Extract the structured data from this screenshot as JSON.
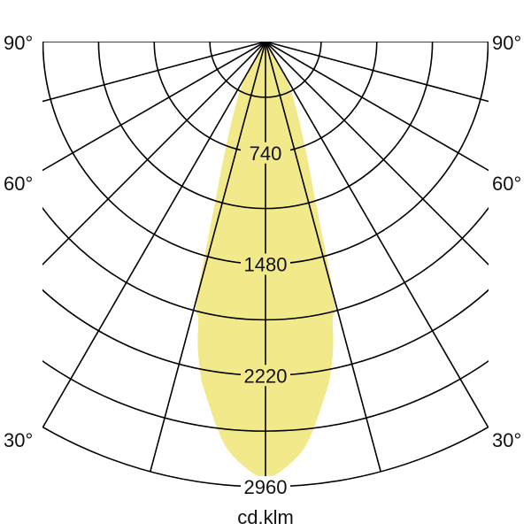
{
  "chart_data": {
    "type": "polar",
    "unit_label": "cd.klm",
    "angle_labels": [
      "90°",
      "60°",
      "30°"
    ],
    "ring_labels": [
      "740",
      "1480",
      "2220",
      "2960"
    ],
    "rmax": 2960,
    "ring_step": 370,
    "angle_step_deg": 15,
    "symmetric": true,
    "fill_color": "#f2ea8a",
    "grid_color": "#000000",
    "series": [
      {
        "angles_deg": [
          0,
          2,
          5,
          7,
          10,
          11,
          12.5,
          13.6,
          15,
          17.5,
          20,
          25,
          30,
          35
        ],
        "values": [
          2900,
          2860,
          2740,
          2600,
          2350,
          2260,
          2080,
          1900,
          1760,
          1100,
          800,
          470,
          250,
          0
        ]
      }
    ]
  }
}
